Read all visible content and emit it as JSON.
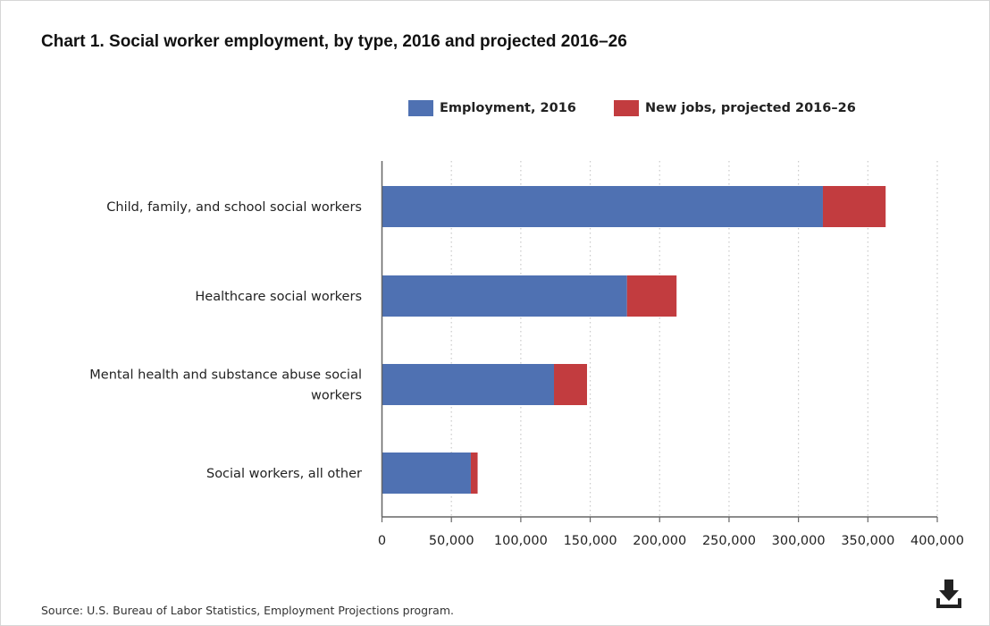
{
  "chart_data": {
    "type": "bar",
    "orientation": "horizontal",
    "stacked": true,
    "title": "Chart 1. Social worker employment, by type, 2016 and projected 2016–26",
    "categories": [
      "Child, family, and school social workers",
      "Healthcare social workers",
      "Mental health and substance abuse social workers",
      "Social workers, all other"
    ],
    "series": [
      {
        "name": "Employment, 2016",
        "color": "#4f71b2",
        "values": [
          317600,
          176500,
          123900,
          64000
        ]
      },
      {
        "name": "New jobs, projected 2016–26",
        "color": "#c23c3f",
        "values": [
          45200,
          35700,
          23800,
          4900
        ]
      }
    ],
    "xlim": [
      0,
      400000
    ],
    "xticks": [
      0,
      50000,
      100000,
      150000,
      200000,
      250000,
      300000,
      350000,
      400000
    ],
    "xtick_labels": [
      "0",
      "50,000",
      "100,000",
      "150,000",
      "200,000",
      "250,000",
      "300,000",
      "350,000",
      "400,000"
    ],
    "grid": "vertical-dotted",
    "legend_position": "top"
  },
  "source_note": "Source: U.S. Bureau of Labor Statistics, Employment Projections program.",
  "download_icon": "download-icon"
}
